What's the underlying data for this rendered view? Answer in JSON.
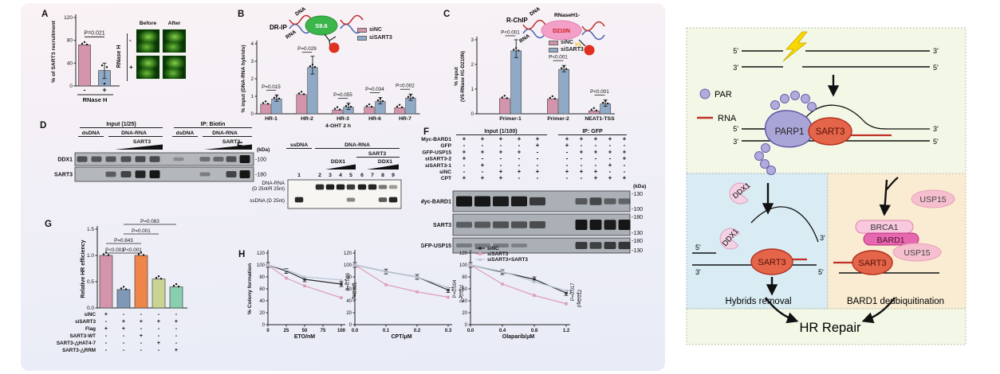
{
  "legend": {
    "siNC": "siNC",
    "siSART3": "siSART3"
  },
  "colors": {
    "siNC": "#d494ac",
    "siSART3": "#8fa9c6",
    "bar_orange": "#f0854a",
    "bar_yellowgreen": "#c9d492",
    "bar_teal": "#87cfae",
    "line_black": "#2b2b2b",
    "line_pink": "#dd9cba",
    "line_blue": "#b8c7d8",
    "red_bead": "#e03020",
    "s96_green": "#3cb54a",
    "enzyme_pink": "#f2a0c8",
    "model_green_bg": "#f3f7e6",
    "model_blue_bg": "#d9ecf4",
    "model_tan_bg": "#f9ecd2",
    "sart3_fill": "#e4654a",
    "parp1_fill": "#a9a5d6",
    "par_fill": "#b0abdc",
    "rna_red": "#c03028",
    "brca1_fill": "#f8c8de",
    "bard1_fill": "#e668ae",
    "usp15_fill": "#f6bfcf",
    "ddx1_fill": "#f4d2e4"
  },
  "panelA": {
    "label": "A",
    "micro": {
      "cols": [
        "Before",
        "After"
      ],
      "side_label": "RNase H",
      "row_signs": [
        "-",
        "+"
      ]
    }
  },
  "panelB": {
    "label": "B",
    "schematic": {
      "title": "DR-IP",
      "dna": "DNA",
      "rna": "RNA",
      "antibody": "S9.6"
    }
  },
  "panelC": {
    "label": "C",
    "schematic": {
      "title": "R-ChIP",
      "dna": "DNA",
      "rna": "RNA",
      "enzyme1": "RNaseH1-",
      "enzyme2": "D210N",
      "tag": "V5"
    }
  },
  "panelD": {
    "label": "D",
    "group_headers": [
      "Input (1/25)",
      "IP: Biotin"
    ],
    "sub_headers": [
      "dsDNA",
      "DNA-RNA"
    ],
    "wedge_label": "SART3",
    "kda": "(kDa)",
    "rows": [
      {
        "name": "DDX1",
        "marker": "-100",
        "bands": [
          0.55,
          0.5,
          0.5,
          0.55,
          0.6,
          0.6,
          0.08,
          0,
          0.3,
          0.35,
          0.55,
          1.0
        ]
      },
      {
        "name": "SART3",
        "marker": "-180",
        "bands": [
          0,
          0,
          0.45,
          0.65,
          0.9,
          1.0,
          0,
          0,
          0.18,
          0,
          0.65,
          1.0
        ]
      }
    ]
  },
  "panelE": {
    "label": "E",
    "headers": {
      "ssdna": "ssDNA",
      "dnarna": "DNA-RNA",
      "sart3": "SART3",
      "ddx1a": "DDX1",
      "ddx1b": "DDX1"
    },
    "lanes": [
      "1",
      "2",
      "3",
      "4",
      "5",
      "6",
      "7",
      "8",
      "9"
    ],
    "row1_label1": "DNA-RNA",
    "row1_label2": "(D 25nt/R 25nt)",
    "row2_label": "ssDNA (D 25nt)",
    "top_bands": [
      0,
      0.88,
      0.95,
      0.95,
      0.8,
      0.95,
      0.92,
      0.45,
      0.25
    ],
    "bottom_bands": [
      0.9,
      0,
      0,
      0,
      0.35,
      0,
      0,
      0.6,
      0.92
    ]
  },
  "panelF": {
    "label": "F",
    "group_headers": [
      "Input (1/100)",
      "IP: GFP"
    ],
    "kda": "(kDa)",
    "conditions": [
      {
        "name": "Myc-BARD1",
        "signs": [
          "+",
          "+",
          "+",
          "+",
          "+",
          "+",
          "+",
          "+",
          "+",
          "+"
        ]
      },
      {
        "name": "GFP",
        "signs": [
          "-",
          "-",
          "-",
          "-",
          "+",
          "+",
          "-",
          "-",
          "-",
          "-"
        ]
      },
      {
        "name": "GFP-USP15",
        "signs": [
          "+",
          "+",
          "+",
          "+",
          "-",
          "-",
          "+",
          "+",
          "+",
          "+"
        ]
      },
      {
        "name": "siSART3-2",
        "signs": [
          "+",
          "-",
          "-",
          "-",
          "-",
          "-",
          "-",
          "-",
          "-",
          "+"
        ]
      },
      {
        "name": "siSART3-1",
        "signs": [
          "-",
          "+",
          "-",
          "-",
          "-",
          "-",
          "-",
          "-",
          "+",
          "-"
        ]
      },
      {
        "name": "siNC",
        "signs": [
          "-",
          "-",
          "+",
          "+",
          "+",
          "+",
          "+",
          "+",
          "-",
          "-"
        ]
      },
      {
        "name": "CPT",
        "signs": [
          "+",
          "+",
          "+",
          "-",
          "-",
          "-",
          "-",
          "+",
          "+",
          "+"
        ]
      }
    ],
    "rows": [
      {
        "name": "Myc-BARD1",
        "markers": [
          "-130",
          "-100"
        ],
        "bands": [
          1,
          1,
          0.95,
          0.95,
          0.7,
          0,
          0.45,
          0.6,
          0.4,
          0.35
        ]
      },
      {
        "name": "SART3",
        "markers": [
          "-180",
          "-130"
        ],
        "bands": [
          0.4,
          0.45,
          0.5,
          0.5,
          0.55,
          0,
          1,
          1,
          0.95,
          1
        ]
      },
      {
        "name": "GFP-USP15",
        "markers": [
          "-180",
          "-130"
        ],
        "bands": [
          0.15,
          0.15,
          0.15,
          0.12,
          0,
          0,
          0.7,
          0.65,
          0.72,
          0.75
        ]
      }
    ]
  },
  "panelG": {
    "label": "G",
    "conditions": [
      {
        "name": "siNC",
        "signs": [
          "+",
          "-",
          "-",
          "-",
          "-"
        ]
      },
      {
        "name": "siSART3",
        "signs": [
          "-",
          "+",
          "+",
          "+",
          "+"
        ]
      },
      {
        "name": "Flag",
        "signs": [
          "+",
          "+",
          "-",
          "-",
          "-"
        ]
      },
      {
        "name": "SART3-WT",
        "signs": [
          "-",
          "-",
          "+",
          "-",
          "-"
        ]
      },
      {
        "name": "SART3-△HAT4-7",
        "signs": [
          "-",
          "-",
          "-",
          "+",
          "-"
        ]
      },
      {
        "name": "SART3-△RRM",
        "signs": [
          "-",
          "-",
          "-",
          "-",
          "+"
        ]
      }
    ]
  },
  "panelH": {
    "label": "H"
  },
  "chart_data": [
    {
      "id": "A",
      "type": "bar",
      "ylabel": "% of SART3 recruitment",
      "ylim": [
        0,
        120
      ],
      "yticks": [
        "0",
        "40",
        "80",
        "120"
      ],
      "categories": [
        "-",
        "+"
      ],
      "values": [
        72,
        27
      ],
      "colors": [
        "#d494ac",
        "#8fa9c6"
      ],
      "xlabel": "RNase H",
      "pvalue": {
        "text": "P=0.021",
        "from": 0,
        "to": 1
      }
    },
    {
      "id": "B",
      "type": "grouped-bar",
      "ylabel": "% input (DNA-RNA hybrids)",
      "ylim": [
        0,
        4
      ],
      "yticks": [
        "0",
        "1",
        "2",
        "3",
        "4"
      ],
      "categories": [
        "HR-1",
        "HR-2",
        "HR-3",
        "HR-6",
        "HR-7"
      ],
      "series": [
        {
          "name": "siNC",
          "color": "#d494ac",
          "values": [
            0.55,
            1.1,
            0.22,
            0.38,
            0.35
          ]
        },
        {
          "name": "siSART3",
          "color": "#8fa9c6",
          "values": [
            0.85,
            2.65,
            0.38,
            0.7,
            0.9
          ]
        }
      ],
      "xlabel": "4-OHT 2 h",
      "pvalues": [
        "P=0.015",
        "P=0.029",
        "P=0.055",
        "P=0.034",
        "P=0.002"
      ]
    },
    {
      "id": "C",
      "type": "grouped-bar",
      "ylabel1": "% input",
      "ylabel2": "(V5-RNase H1-D210N)",
      "ylim": [
        0,
        3
      ],
      "yticks": [
        "0",
        "1",
        "2",
        "3"
      ],
      "categories": [
        "Primer-1",
        "Primer-2",
        "NEAT1-TSS"
      ],
      "series": [
        {
          "name": "siNC",
          "color": "#d494ac",
          "values": [
            0.62,
            0.6,
            0.12
          ]
        },
        {
          "name": "siSART3",
          "color": "#8fa9c6",
          "values": [
            2.55,
            1.8,
            0.4
          ]
        }
      ],
      "pvalues": [
        "P<0.001",
        "P<0.001",
        "P<0.001"
      ]
    },
    {
      "id": "G",
      "type": "bar",
      "ylabel": "Relative HR efficiency",
      "ylim": [
        0,
        1.5
      ],
      "yticks": [
        "0.0",
        "0.5",
        "1.0",
        "1.5"
      ],
      "values": [
        1.0,
        0.35,
        1.0,
        0.55,
        0.4
      ],
      "colors": [
        "#d494ac",
        "#7f98b5",
        "#f0854a",
        "#c9d492",
        "#87cfae"
      ],
      "pbrackets": [
        {
          "text": "P<0.001",
          "from": 0,
          "to": 1,
          "level": 0
        },
        {
          "text": "P<0.001",
          "from": 1,
          "to": 2,
          "level": 0
        },
        {
          "text": "P=0.843",
          "from": 0,
          "to": 2,
          "level": 1
        },
        {
          "text": "P=0.001",
          "from": 1,
          "to": 3,
          "level": 2
        },
        {
          "text": "P=0.083",
          "from": 1,
          "to": 4,
          "level": 3
        }
      ]
    },
    {
      "id": "H1",
      "type": "line",
      "ylabel": "% Colony formation",
      "ylim": [
        0,
        120
      ],
      "yticks": [
        "0",
        "20",
        "40",
        "60",
        "80",
        "100",
        "120"
      ],
      "xlabel": "ETO/nM",
      "xticks": [
        "0",
        "25",
        "50",
        "75",
        "100"
      ],
      "xtickvals": [
        0,
        25,
        50,
        75,
        100
      ],
      "xmax": 100,
      "x": [
        0,
        25,
        50,
        100
      ],
      "series": [
        {
          "name": "siNC",
          "color": "#2b2b2b",
          "marker": "circle",
          "values": [
            100,
            90,
            76,
            68
          ]
        },
        {
          "name": "siSART3",
          "color": "#dd9cba",
          "marker": "square",
          "values": [
            100,
            78,
            65,
            45
          ]
        },
        {
          "name": "siSART3+SART3",
          "color": "#b8c7d8",
          "marker": "triangle",
          "values": [
            100,
            92,
            80,
            75
          ]
        }
      ],
      "pvalues": [
        "P=0.023",
        "P=0.001"
      ]
    },
    {
      "id": "H2",
      "type": "line",
      "ylim": [
        0,
        120
      ],
      "yticks": [
        "0",
        "20",
        "40",
        "60",
        "80",
        "100",
        "120"
      ],
      "xlabel": "CPT/μM",
      "xticks": [
        "0.0",
        "0.1",
        "0.2",
        "0.3"
      ],
      "xtickvals": [
        0,
        0.1,
        0.2,
        0.3
      ],
      "xmax": 0.3,
      "x": [
        0,
        0.1,
        0.2,
        0.3
      ],
      "series": [
        {
          "name": "siNC",
          "color": "#2b2b2b",
          "marker": "circle",
          "values": [
            100,
            89,
            80,
            58
          ]
        },
        {
          "name": "siSART3",
          "color": "#dd9cba",
          "marker": "square",
          "values": [
            100,
            67,
            55,
            46
          ]
        },
        {
          "name": "siSART3+SART3",
          "color": "#b8c7d8",
          "marker": "triangle",
          "values": [
            100,
            89,
            80,
            62
          ]
        }
      ],
      "pvalues": [
        "P=0.004",
        "P=0.002"
      ]
    },
    {
      "id": "H3",
      "type": "line",
      "ylim": [
        0,
        120
      ],
      "yticks": [
        "0",
        "20",
        "40",
        "60",
        "80",
        "100",
        "120"
      ],
      "xlabel": "Olaparib/μM",
      "xticks": [
        "0.0",
        "0.4",
        "0.8",
        "1.2"
      ],
      "xtickvals": [
        0,
        0.4,
        0.8,
        1.2
      ],
      "xmax": 1.2,
      "x": [
        0,
        0.4,
        0.8,
        1.2
      ],
      "series": [
        {
          "name": "siNC",
          "color": "#2b2b2b",
          "marker": "circle",
          "values": [
            100,
            88,
            76,
            53
          ]
        },
        {
          "name": "siSART3",
          "color": "#dd9cba",
          "marker": "square",
          "values": [
            100,
            68,
            49,
            35
          ]
        },
        {
          "name": "siSART3+SART3",
          "color": "#b8c7d8",
          "marker": "triangle",
          "values": [
            100,
            89,
            72,
            57
          ]
        }
      ],
      "pvalues": [
        "P=0.017",
        "P=0.012"
      ],
      "legend": [
        "siNC",
        "siSART3",
        "siSART3+SART3"
      ]
    }
  ],
  "model": {
    "legend": {
      "par": "PAR",
      "rna": "RNA"
    },
    "top": {
      "labels": [
        "5'",
        "3'",
        "3'",
        "5'",
        "5'",
        "3'",
        "3'",
        "5'"
      ],
      "parp1": "PARP1",
      "sart3": "SART3"
    },
    "left": {
      "ddx1a": "DDX1",
      "ddx1b": "DDX1",
      "sart3": "SART3",
      "labels": [
        "5'",
        "3'",
        "3'",
        "5'"
      ],
      "caption": "Hybrids removal"
    },
    "right": {
      "usp15a": "USP15",
      "brca1": "BRCA1",
      "bard1": "BARD1",
      "usp15b": "USP15",
      "sart3": "SART3",
      "caption": "BARD1 deubiquitination"
    },
    "footer": "HR Repair"
  }
}
